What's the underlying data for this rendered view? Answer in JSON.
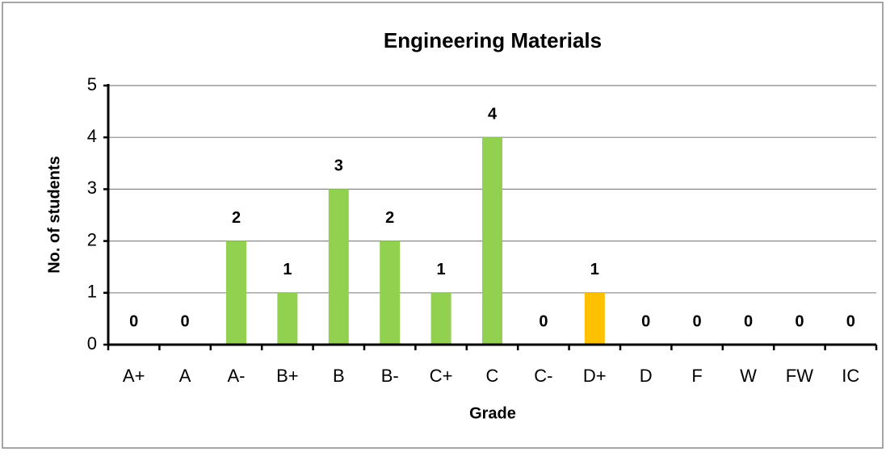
{
  "chart_data": {
    "type": "bar",
    "title": "Engineering Materials",
    "x_label": "Grade",
    "y_label": "No. of students",
    "categories": [
      "A+",
      "A",
      "A-",
      "B+",
      "B",
      "B-",
      "C+",
      "C",
      "C-",
      "D+",
      "D",
      "F",
      "W",
      "FW",
      "IC"
    ],
    "values": [
      0,
      0,
      2,
      1,
      3,
      2,
      1,
      4,
      0,
      1,
      0,
      0,
      0,
      0,
      0
    ],
    "colors": [
      "#92d050",
      "#92d050",
      "#92d050",
      "#92d050",
      "#92d050",
      "#92d050",
      "#92d050",
      "#92d050",
      "#92d050",
      "#ffc000",
      "#92d050",
      "#92d050",
      "#92d050",
      "#92d050",
      "#92d050"
    ],
    "ylim": [
      0,
      5
    ],
    "yticks": [
      0,
      1,
      2,
      3,
      4,
      5
    ],
    "grid": true
  }
}
